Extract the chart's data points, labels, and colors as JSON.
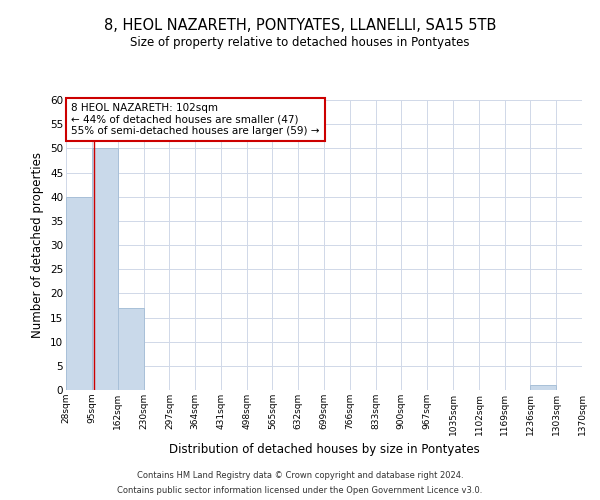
{
  "title": "8, HEOL NAZARETH, PONTYATES, LLANELLI, SA15 5TB",
  "subtitle": "Size of property relative to detached houses in Pontyates",
  "xlabel": "Distribution of detached houses by size in Pontyates",
  "ylabel": "Number of detached properties",
  "bin_edges": [
    28,
    95,
    162,
    230,
    297,
    364,
    431,
    498,
    565,
    632,
    699,
    766,
    833,
    900,
    967,
    1035,
    1102,
    1169,
    1236,
    1303,
    1370
  ],
  "bar_heights": [
    40,
    50,
    17,
    0,
    0,
    0,
    0,
    0,
    0,
    0,
    0,
    0,
    0,
    0,
    0,
    0,
    0,
    0,
    1,
    0
  ],
  "bar_color": "#c9d9ea",
  "bar_edgecolor": "#a8c0d8",
  "ylim": [
    0,
    60
  ],
  "yticks": [
    0,
    5,
    10,
    15,
    20,
    25,
    30,
    35,
    40,
    45,
    50,
    55,
    60
  ],
  "property_size": 102,
  "vline_color": "#cc0000",
  "annotation_text": "8 HEOL NAZARETH: 102sqm\n← 44% of detached houses are smaller (47)\n55% of semi-detached houses are larger (59) →",
  "annotation_box_color": "#cc0000",
  "background_color": "#ffffff",
  "grid_color": "#d0d8e8",
  "footer_line1": "Contains HM Land Registry data © Crown copyright and database right 2024.",
  "footer_line2": "Contains public sector information licensed under the Open Government Licence v3.0."
}
